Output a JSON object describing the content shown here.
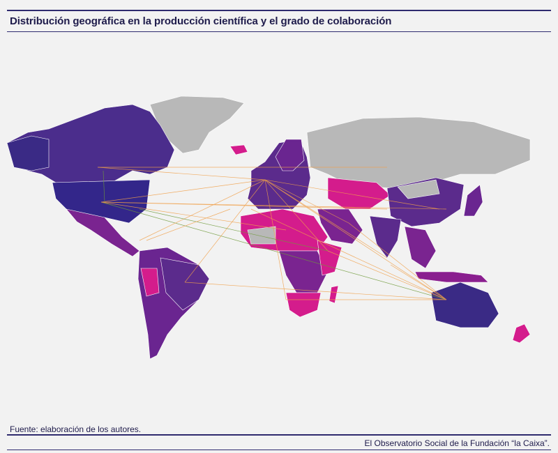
{
  "header": {
    "title": "Distribución geográfica en la producción científica y el grado de colaboración"
  },
  "footer": {
    "source": "Fuente: elaboración de los autores.",
    "credit": "El Observatorio Social de la Fundación “la Caixa”."
  },
  "map": {
    "legend_colors": {
      "very_high": "#3a2a85",
      "high": "#5b2b8c",
      "medium": "#8a1f8f",
      "low": "#d41c8c",
      "no_data": "#b8b8b8"
    },
    "link_colors": {
      "primary": "#f0a04a",
      "secondary": "#6f9a3a"
    }
  }
}
